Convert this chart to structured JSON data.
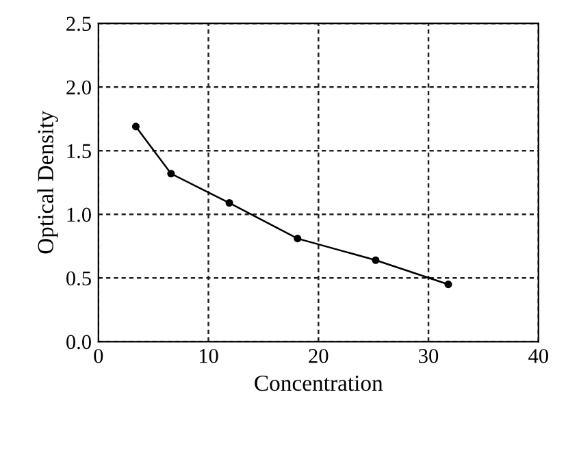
{
  "chart_data": {
    "type": "line",
    "xlabel": "Concentration",
    "ylabel": "Optical Density",
    "x": [
      3.4,
      6.6,
      11.9,
      18.1,
      25.2,
      31.8
    ],
    "series": [
      {
        "color": "#000000",
        "values": [
          1.69,
          1.32,
          1.09,
          0.81,
          0.64,
          0.45
        ]
      }
    ],
    "xlim": [
      0,
      40
    ],
    "xticks": [
      0,
      10,
      20,
      30,
      40
    ],
    "ylim": [
      0,
      2.5
    ],
    "yticks": [
      {
        "value": 0,
        "label": "0.0"
      },
      {
        "value": 0.5,
        "label": "0.5"
      },
      {
        "value": 1,
        "label": "1.0"
      },
      {
        "value": 1.5,
        "label": "1.5"
      },
      {
        "value": 2,
        "label": "2.0"
      },
      {
        "value": 2.5,
        "label": "2.5"
      }
    ],
    "grid": true,
    "marker": "circle",
    "line_style": "solid"
  }
}
